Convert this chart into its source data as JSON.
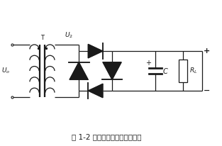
{
  "title": "图 1-2 桥式整流、电容滤波电路",
  "background_color": "#ffffff",
  "line_color": "#1a1a1a",
  "fig_width": 3.13,
  "fig_height": 2.06,
  "dpi": 100,
  "xlim": [
    0,
    10
  ],
  "ylim": [
    0,
    7
  ]
}
